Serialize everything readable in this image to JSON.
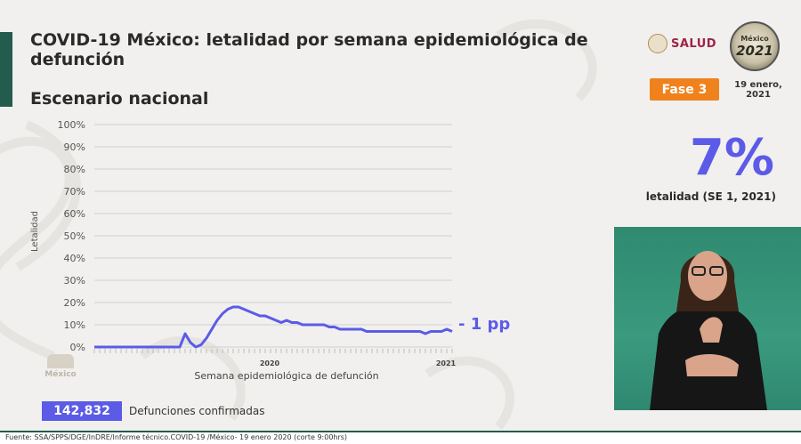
{
  "header": {
    "title": "COVID-19 México: letalidad por semana epidemiológica de defunción",
    "subtitle": "Escenario nacional"
  },
  "branding": {
    "salud": "SALUD",
    "seal_top": "México",
    "seal_year": "2021"
  },
  "badge": {
    "fase": "Fase 3",
    "date": "19 enero, 2021"
  },
  "kpi": {
    "value": "7%",
    "label": "letalidad (SE 1, 2021)"
  },
  "chart_data": {
    "type": "line",
    "ylabel": "Letalidad",
    "xlabel": "Semana epidemiológica de defunción",
    "ylim": [
      0,
      100
    ],
    "yticks": [
      "0%",
      "10%",
      "20%",
      "30%",
      "40%",
      "50%",
      "60%",
      "70%",
      "80%",
      "90%",
      "100%"
    ],
    "year_labels": [
      "2020",
      "2021"
    ],
    "annotation": "- 1 pp",
    "grid": true,
    "color": "#5b5be8",
    "series": [
      {
        "values": [
          0,
          0,
          0,
          0,
          0,
          0,
          0,
          0,
          0,
          0,
          0,
          0,
          0,
          0,
          0,
          0,
          0,
          6,
          2,
          0,
          1,
          4,
          8,
          12,
          15,
          17,
          18,
          18,
          17,
          16,
          15,
          14,
          14,
          13,
          12,
          11,
          12,
          11,
          11,
          10,
          10,
          10,
          10,
          10,
          9,
          9,
          8,
          8,
          8,
          8,
          8,
          7,
          7,
          7,
          7,
          7,
          7,
          7,
          7,
          7,
          7,
          7,
          6,
          7,
          7,
          7,
          8,
          7
        ]
      }
    ]
  },
  "totals": {
    "value": "142,832",
    "label": "Defunciones confirmadas"
  },
  "footer": "Fuente: SSA/SPPS/DGE/InDRE/Informe técnico.COVID-19 /México- 19 enero 2020 (corte 9:00hrs)",
  "gob_logo": "México"
}
